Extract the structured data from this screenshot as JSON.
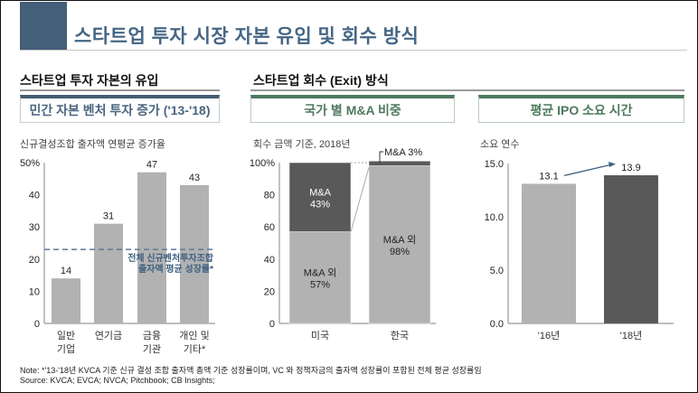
{
  "title": "스타트업 투자 시장 자본 유입 및 회수 방식",
  "sections": {
    "left": "스타트업 투자 자본의 유입",
    "right": "스타트업 회수 (Exit) 방식"
  },
  "boxes": [
    "민간 자본 벤처 투자 증가 ('13-'18)",
    "국가 별 M&A 비중",
    "평균 IPO 소요 시간"
  ],
  "colors": {
    "title_square": "#455f78",
    "blue_box": "#445c75",
    "green_box": "#4e7a5e",
    "bar_light": "#b2b2b2",
    "bar_dark": "#595959",
    "dash": "#5b7b98"
  },
  "chart_data": [
    {
      "type": "bar",
      "title": "신규결성조합 출자액 연평균 증가율",
      "categories": [
        [
          "일반",
          "기업"
        ],
        [
          "연기금",
          ""
        ],
        [
          "금융",
          "기관"
        ],
        [
          "개인 및",
          "기타*"
        ]
      ],
      "values": [
        14,
        31,
        47,
        43
      ],
      "ylim": [
        0,
        50
      ],
      "yticks": [
        "0",
        "10",
        "20",
        "30",
        "40",
        "50%"
      ],
      "reference_line": {
        "value": 23,
        "label": [
          "전체 신규벤처투자조합",
          "출자액 평균 성장률*"
        ]
      }
    },
    {
      "type": "bar",
      "stacked": true,
      "title": "회수 금액 기준, 2018년",
      "categories": [
        "미국",
        "한국"
      ],
      "series": [
        {
          "name": "M&A 외",
          "values": [
            57,
            98
          ],
          "labels": [
            [
              "M&A 외",
              "57%"
            ],
            [
              "M&A 외",
              "98%"
            ]
          ]
        },
        {
          "name": "M&A",
          "values": [
            43,
            3
          ],
          "labels": [
            [
              "M&A",
              "43%"
            ],
            [
              "M&A 3%"
            ]
          ]
        }
      ],
      "ylim": [
        0,
        100
      ],
      "yticks": [
        "0",
        "20",
        "40",
        "60",
        "80",
        "100%"
      ]
    },
    {
      "type": "bar",
      "title": "소요 연수",
      "categories": [
        "'16년",
        "'18년"
      ],
      "values": [
        13.1,
        13.9
      ],
      "value_labels": [
        "13.1",
        "13.9"
      ],
      "ylim": [
        0,
        15
      ],
      "yticks": [
        "0.0",
        "5.0",
        "10.0",
        "15.0"
      ]
    }
  ],
  "footer": {
    "note": "Note: *'13-'18년 KVCA 기준 신규 결성 조합 출자액 총액 기준 성장률이며, VC 와 정책자금의 출자액 성장률이 포함된 전체 평균 성장률임",
    "source": "Source: KVCA; EVCA; NVCA; Pitchbook; CB Insights;"
  }
}
